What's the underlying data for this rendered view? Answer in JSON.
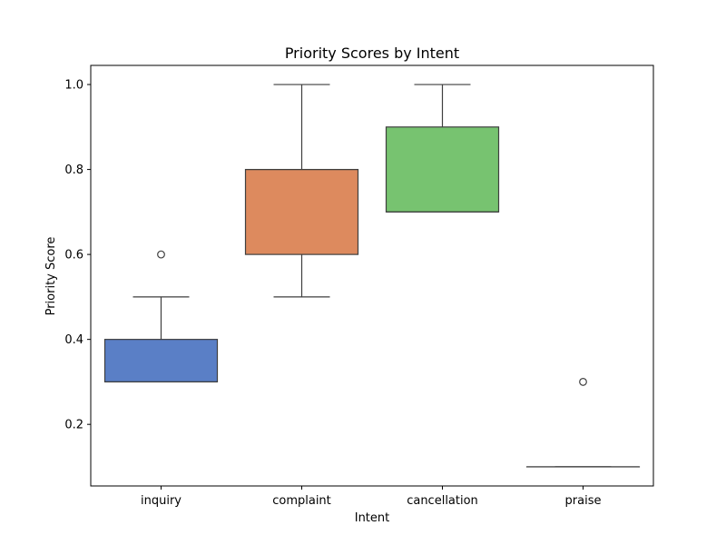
{
  "chart_data": {
    "type": "box",
    "title": "Priority Scores by Intent",
    "xlabel": "Intent",
    "ylabel": "Priority Score",
    "ylim": [
      0.055,
      1.045
    ],
    "yticks": [
      0.2,
      0.4,
      0.6,
      0.8,
      1.0
    ],
    "ytick_labels": [
      "0.2",
      "0.4",
      "0.6",
      "0.8",
      "1.0"
    ],
    "categories": [
      "inquiry",
      "complaint",
      "cancellation",
      "praise"
    ],
    "boxes": [
      {
        "category": "inquiry",
        "whisker_low": 0.3,
        "q1": 0.3,
        "median": 0.3,
        "q3": 0.4,
        "whisker_high": 0.5,
        "outliers": [
          0.6
        ],
        "color": "#5a7fc6"
      },
      {
        "category": "complaint",
        "whisker_low": 0.5,
        "q1": 0.6,
        "median": 0.8,
        "q3": 0.8,
        "whisker_high": 1.0,
        "outliers": [],
        "color": "#dd8a5e"
      },
      {
        "category": "cancellation",
        "whisker_low": 0.7,
        "q1": 0.7,
        "median": 0.7,
        "q3": 0.9,
        "whisker_high": 1.0,
        "outliers": [],
        "color": "#77c370"
      },
      {
        "category": "praise",
        "whisker_low": 0.1,
        "q1": 0.1,
        "median": 0.1,
        "q3": 0.1,
        "whisker_high": 0.1,
        "outliers": [
          0.3
        ],
        "color": "#ca4f4f"
      }
    ],
    "grid": false,
    "legend": "none"
  }
}
